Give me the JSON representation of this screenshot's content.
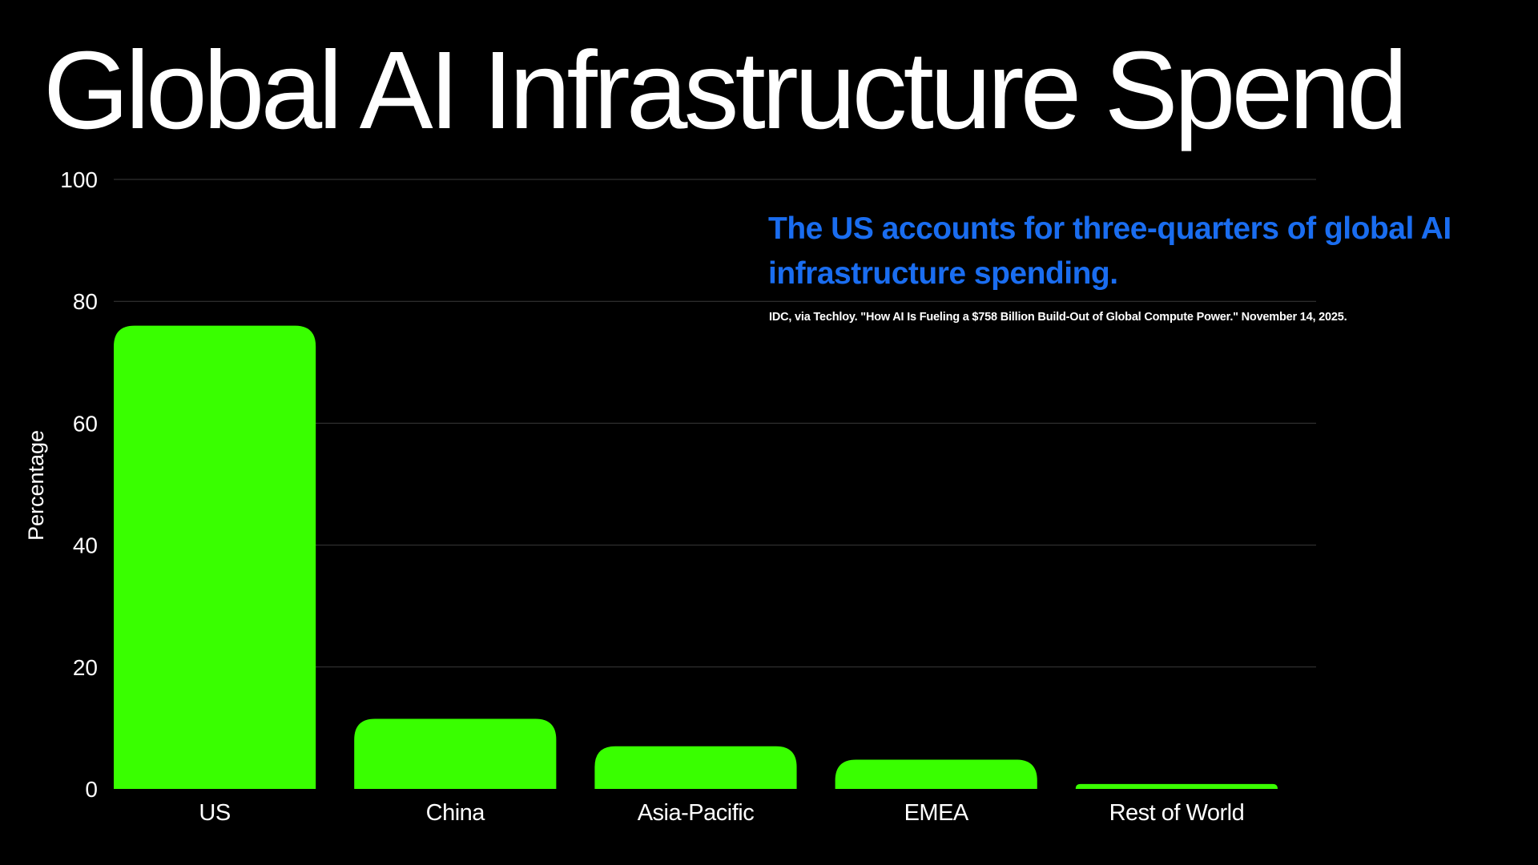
{
  "title": "Global AI Infrastructure Spend",
  "callout": "The US accounts for three-quarters of global AI infrastructure spending.",
  "source": "IDC, via Techloy. \"How AI Is Fueling a $758 Billion Build-Out of Global Compute Power.\" November 14, 2025.",
  "colors": {
    "background": "#000000",
    "bar": "#39ff00",
    "callout": "#1a6df0",
    "text": "#ffffff",
    "grid": "#3a3a3a"
  },
  "chart_data": {
    "type": "bar",
    "categories": [
      "US",
      "China",
      "Asia-Pacific",
      "EMEA",
      "Rest of World"
    ],
    "values": [
      76,
      11.5,
      7,
      4.8,
      0.8
    ],
    "title": "Global AI Infrastructure Spend",
    "xlabel": "",
    "ylabel": "Percentage",
    "ylim": [
      0,
      100
    ],
    "yticks": [
      "0",
      "20",
      "40",
      "60",
      "80",
      "100"
    ],
    "ytick_values": [
      0,
      20,
      40,
      60,
      80,
      100
    ],
    "grid": true,
    "legend": "none"
  }
}
